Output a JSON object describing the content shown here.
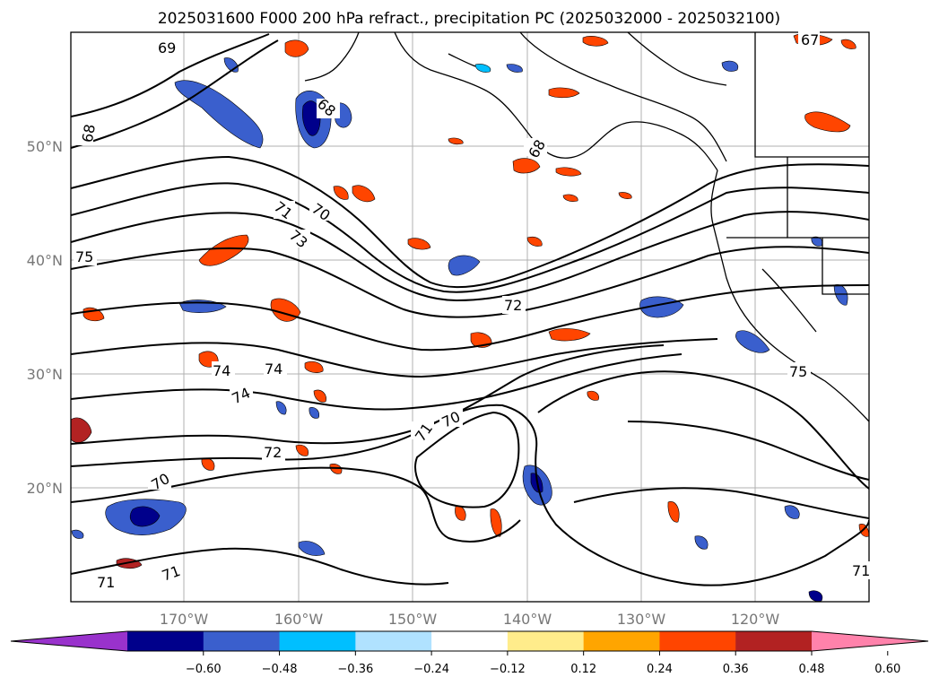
{
  "title": "2025031600 F000 200 hPa refract., precipitation PC (2025032000 - 2025032100)",
  "lat_labels": [
    "50°N",
    "40°N",
    "30°N",
    "20°N"
  ],
  "lon_labels": [
    "170°W",
    "160°W",
    "150°W",
    "140°W",
    "130°W",
    "120°W"
  ],
  "colorbar": {
    "ticks": [
      "−0.60",
      "−0.48",
      "−0.36",
      "−0.24",
      "−0.12",
      "0.12",
      "0.24",
      "0.36",
      "0.48",
      "0.60"
    ],
    "colors": [
      "#9932cc",
      "#00008b",
      "#3a5fcd",
      "#00bfff",
      "#b0e2ff",
      "#ffffff",
      "#ffec8b",
      "#ffa500",
      "#ff4500",
      "#b22222",
      "#ff82ab"
    ]
  },
  "contour_labels": [
    "69",
    "68",
    "68",
    "67",
    "70",
    "71",
    "73",
    "75",
    "72",
    "74",
    "74",
    "74",
    "72",
    "70",
    "71",
    "70",
    "71",
    "71",
    "68",
    "75",
    "71"
  ],
  "colors": {
    "negative_core": "#00008b",
    "negative_mid": "#3a5fcd",
    "negative_edge": "#00bfff",
    "positive_core": "#b22222",
    "positive_mid": "#ff4500",
    "positive_edge": "#ffa500",
    "positive_outer": "#ffec8b"
  }
}
